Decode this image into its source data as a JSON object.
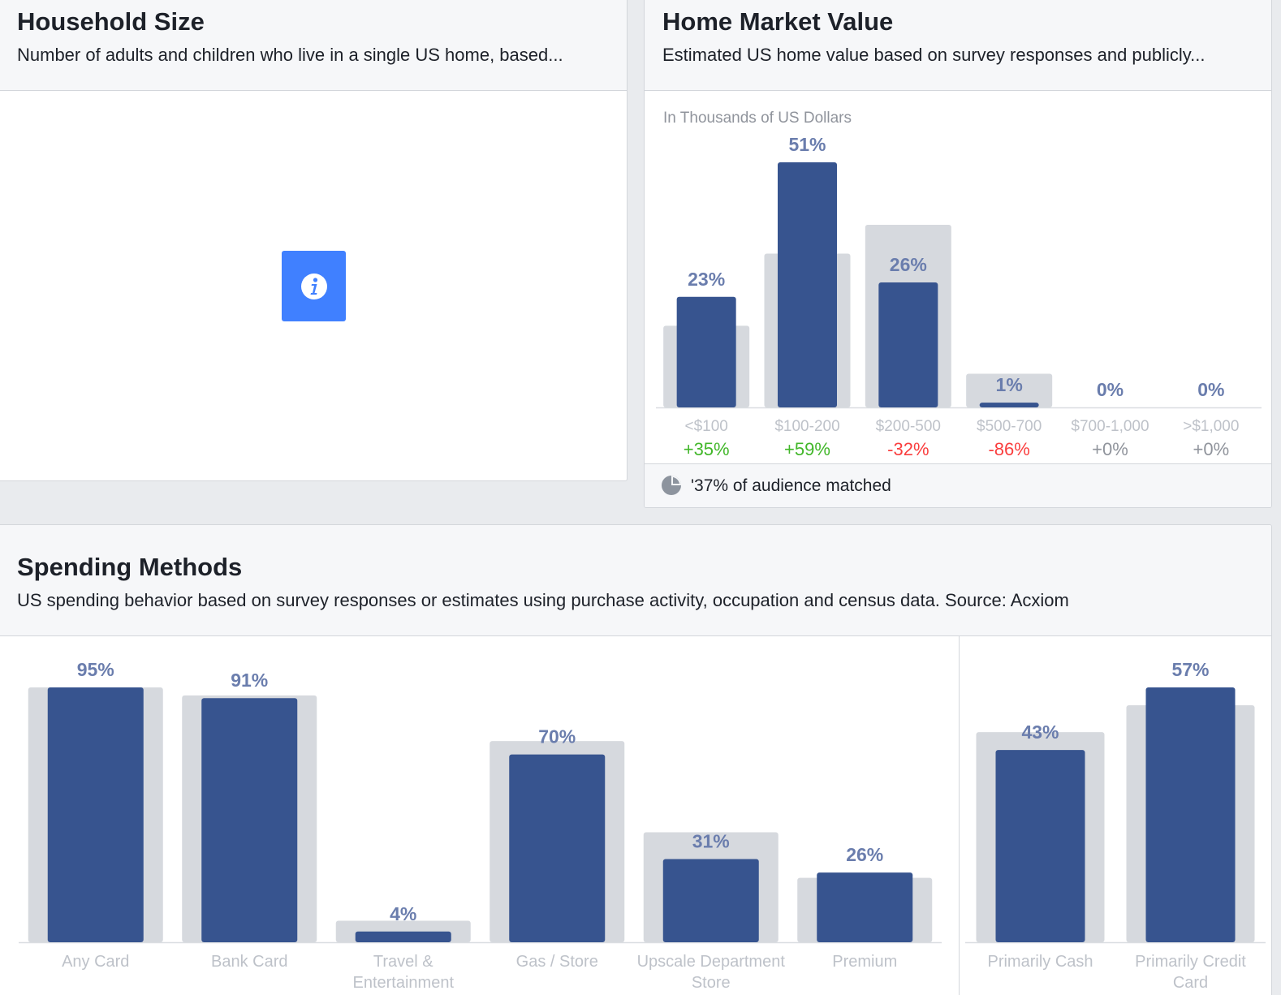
{
  "household": {
    "title": "Household Size",
    "description": "Number of adults and children who live in a single US home, based..."
  },
  "home_value": {
    "title": "Home Market Value",
    "description": "Estimated US home value based on survey responses and publicly...",
    "unit_note": "In Thousands of US Dollars",
    "footer": "'37% of audience matched"
  },
  "spending": {
    "title": "Spending Methods",
    "description": "US spending behavior based on survey responses or estimates using purchase activity, occupation and census data. Source: Acxiom"
  },
  "colors": {
    "bar": "#37548f",
    "baseline": "#d6d9de",
    "value_label": "#6a7dad",
    "positive": "#42b72a",
    "negative": "#fa3e3e",
    "neutral": "#90949c",
    "category": "#bec2c9"
  },
  "chart_data": [
    {
      "type": "bar",
      "title": "Home Market Value",
      "ylabel": "In Thousands of US Dollars",
      "categories": [
        "<$100",
        "$100-200",
        "$200-500",
        "$500-700",
        "$700-1,000",
        ">$1,000"
      ],
      "series": [
        {
          "values": [
            23,
            51,
            26,
            1,
            0,
            0
          ]
        },
        {
          "values": [
            17,
            32,
            38,
            7,
            0,
            0
          ]
        }
      ],
      "value_labels": [
        "23%",
        "51%",
        "26%",
        "1%",
        "0%",
        "0%"
      ],
      "comparisons": [
        "+35%",
        "+59%",
        "-32%",
        "-86%",
        "+0%",
        "+0%"
      ],
      "ylim": [
        0,
        51
      ]
    },
    {
      "type": "bar",
      "title": "Spending Methods",
      "categories": [
        "Any Card",
        "Bank Card",
        "Travel & Entertainment",
        "Gas / Store",
        "Upscale Department Store",
        "Premium"
      ],
      "series": [
        {
          "values": [
            95,
            91,
            4,
            70,
            31,
            26
          ]
        },
        {
          "values": [
            95,
            92,
            8,
            75,
            41,
            24
          ]
        }
      ],
      "value_labels": [
        "95%",
        "91%",
        "4%",
        "70%",
        "31%",
        "26%"
      ],
      "ylim": [
        0,
        95
      ]
    },
    {
      "type": "bar",
      "title": "Spending Methods",
      "categories": [
        "Primarily Cash",
        "Primarily Credit Card"
      ],
      "series": [
        {
          "values": [
            43,
            57
          ]
        },
        {
          "values": [
            47,
            53
          ]
        }
      ],
      "value_labels": [
        "43%",
        "57%"
      ],
      "ylim": [
        0,
        57
      ]
    }
  ]
}
